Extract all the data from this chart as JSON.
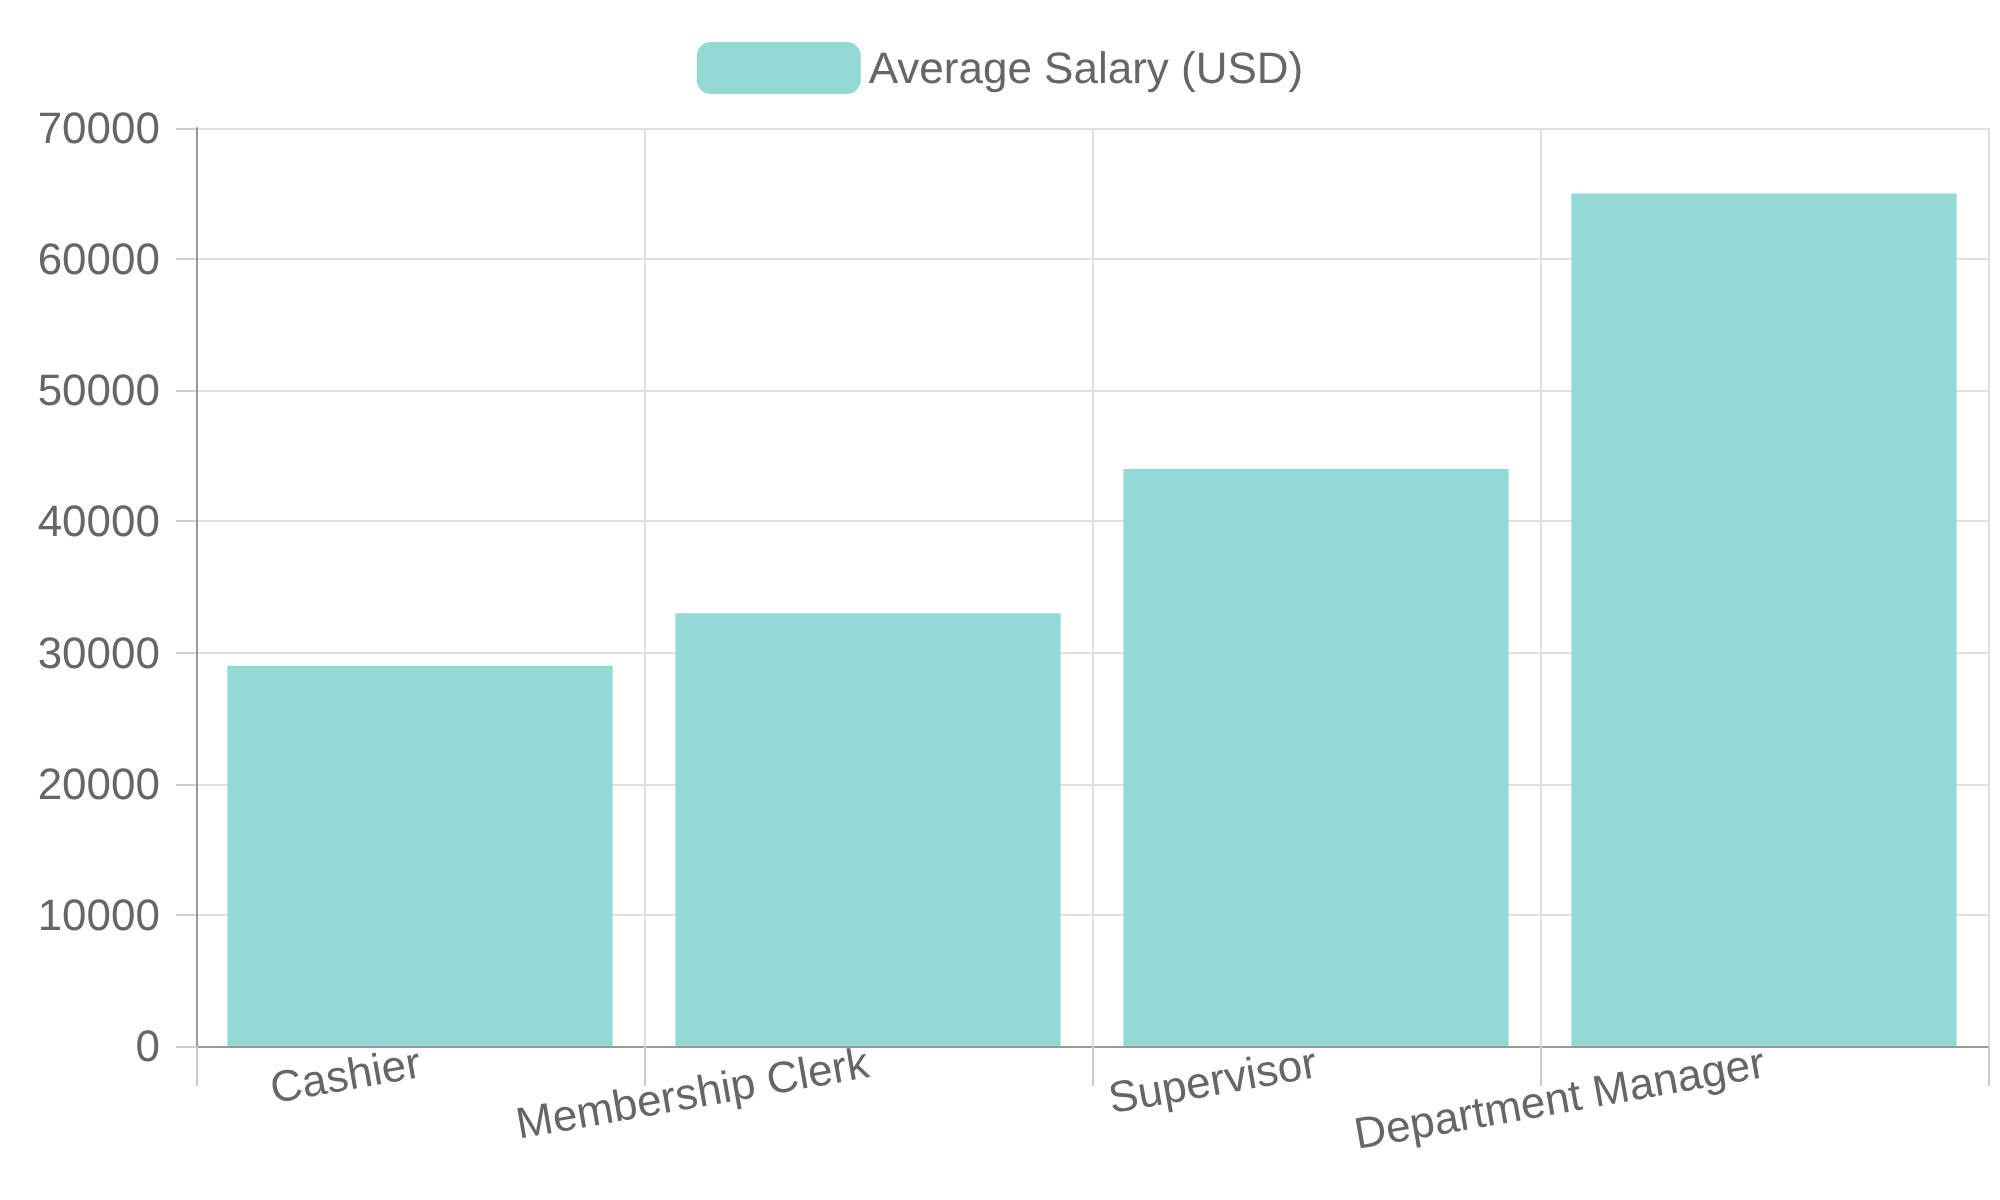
{
  "chart_data": {
    "type": "bar",
    "categories": [
      "Cashier",
      "Membership Clerk",
      "Supervisor",
      "Department Manager"
    ],
    "series": [
      {
        "name": "Average Salary (USD)",
        "color": "#93d9d6",
        "values": [
          29000,
          33000,
          44000,
          65000
        ]
      }
    ],
    "ylim": [
      0,
      70000
    ],
    "yticks": [
      0,
      10000,
      20000,
      30000,
      40000,
      50000,
      60000,
      70000
    ],
    "grid": true,
    "legend": "top"
  }
}
